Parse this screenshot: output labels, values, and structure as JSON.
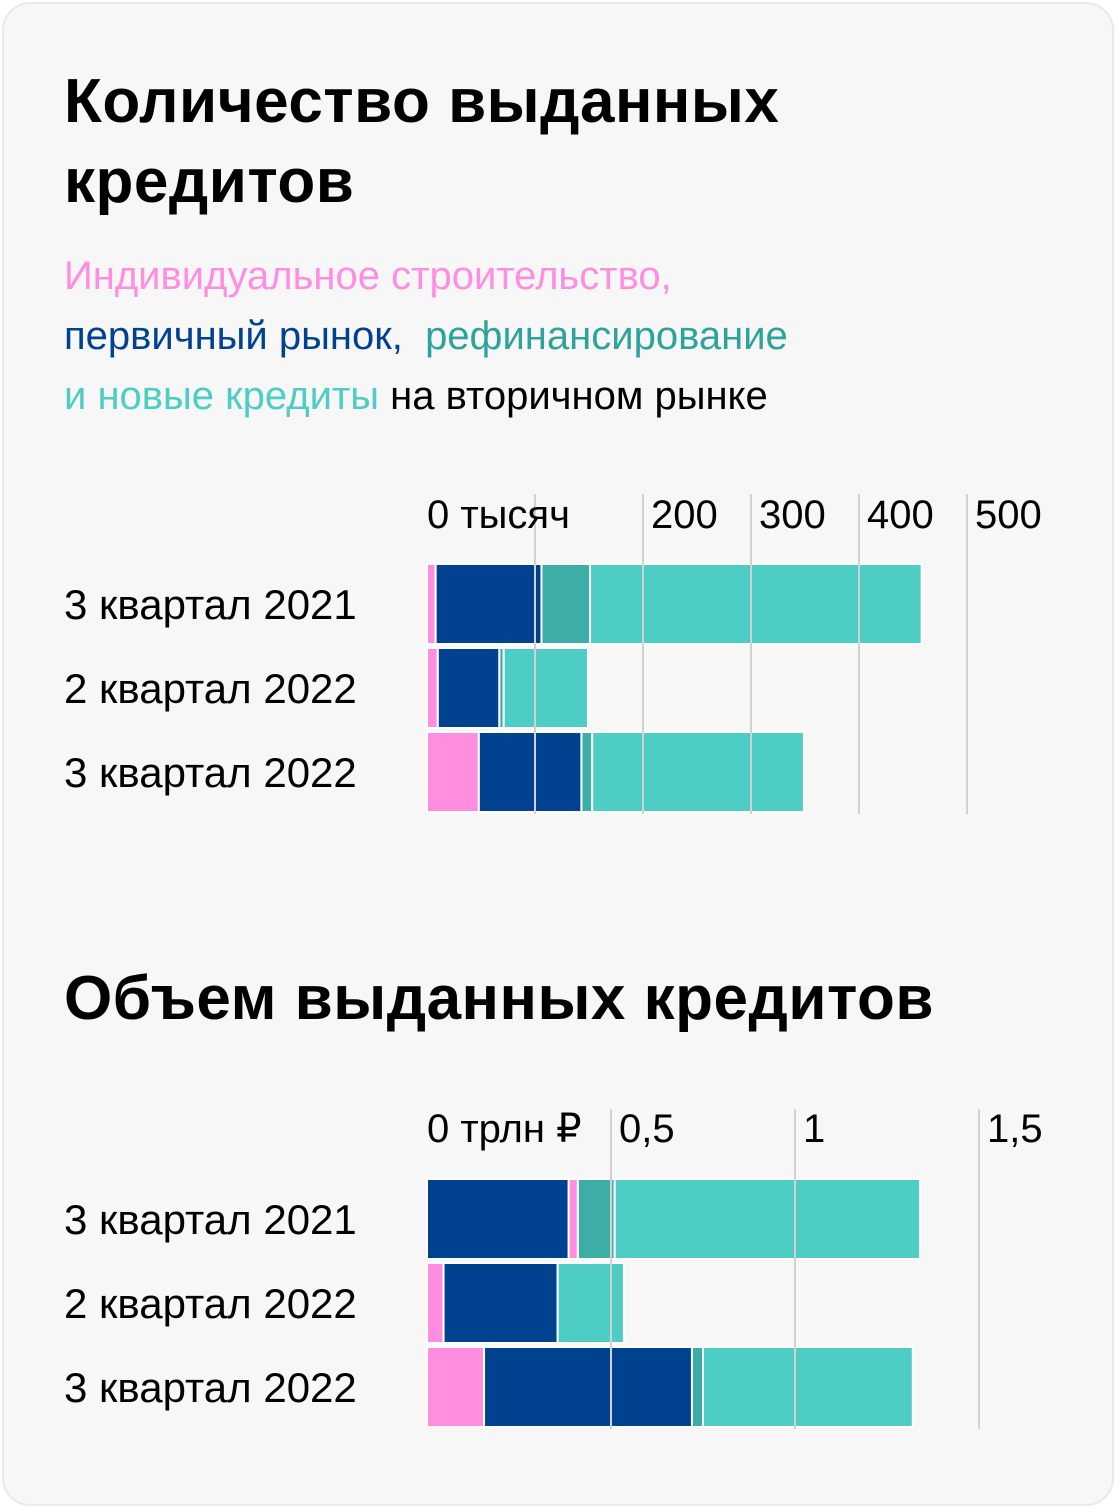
{
  "colors": {
    "individual": "#ff8ee0",
    "primary": "#00428f",
    "refinance": "#3daea5",
    "new_secondary": "#4ecdc4",
    "grid": "#d2d2d2",
    "background": "#f7f7f7"
  },
  "legend": {
    "individual": "Индивидуальное строительство,",
    "primary": "первичный рынок,",
    "refinance": "рефинансирование",
    "new_secondary": "и новые кредиты",
    "suffix": "на вторичном рынке"
  },
  "chart_data": [
    {
      "type": "bar",
      "orientation": "horizontal",
      "stacked": true,
      "title": "Количество выданных кредитов",
      "categories": [
        "3 квартал 2021",
        "2 квартал 2022",
        "3 квартал 2022"
      ],
      "xlim": [
        0,
        580
      ],
      "tick_values": [
        0,
        100,
        200,
        300,
        400,
        500
      ],
      "tick_labels": [
        "0 тысяч",
        "",
        "200",
        "300",
        "400",
        "500"
      ],
      "series": [
        {
          "key": "individual",
          "values": [
            8,
            10,
            48
          ]
        },
        {
          "key": "primary",
          "values": [
            98,
            57,
            95
          ]
        },
        {
          "key": "refinance",
          "values": [
            45,
            4,
            10
          ]
        },
        {
          "key": "new_secondary",
          "values": [
            307,
            78,
            196
          ]
        }
      ]
    },
    {
      "type": "bar",
      "orientation": "horizontal",
      "stacked": true,
      "title": "Объем выданных кредитов",
      "categories": [
        "3 квартал 2021",
        "2 квартал 2022",
        "3 квартал 2022"
      ],
      "xlim": [
        0,
        1.7
      ],
      "tick_values": [
        0,
        0.5,
        1,
        1.5
      ],
      "tick_labels": [
        "0 трлн ₽",
        "0,5",
        "1",
        "1,5"
      ],
      "series": [
        {
          "key": "primary",
          "values": [
            0.385,
            0.31,
            0.565
          ]
        },
        {
          "key": "individual",
          "values": [
            0.025,
            0.045,
            0.155
          ]
        },
        {
          "key": "refinance",
          "values": [
            0.1,
            0.025,
            0.03
          ]
        },
        {
          "key": "new_secondary",
          "values": [
            0.83,
            0.18,
            0.57
          ]
        }
      ],
      "segment_order": [
        [
          "primary",
          "individual",
          "refinance",
          "new_secondary"
        ],
        [
          "individual",
          "primary",
          "new_secondary"
        ],
        [
          "individual",
          "primary",
          "refinance",
          "new_secondary"
        ]
      ]
    }
  ]
}
